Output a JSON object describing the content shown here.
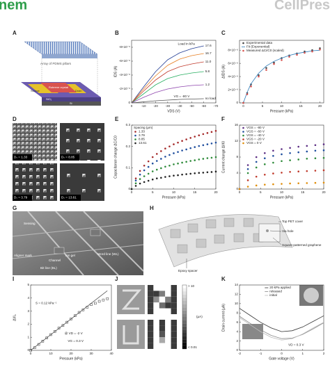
{
  "header": {
    "journal": "nem",
    "publisher": "CellPres"
  },
  "panels": {
    "A": {
      "label": "A",
      "texts": [
        "Array of PDMS pillars",
        "Rubrene crystal",
        "Source",
        "Drain",
        "SiO₂",
        "Si"
      ]
    },
    "B": {
      "label": "B",
      "chart": {
        "type": "line",
        "xlabel": "VDS (V)",
        "ylabel": "IDS (A)",
        "x": [
          0,
          -10,
          -20,
          -30,
          -40,
          -50,
          -60
        ],
        "xlim": [
          0,
          -70
        ],
        "ylim": [
          0,
          -9e-06
        ],
        "xticks": [
          0,
          -10,
          -20,
          -30,
          -40,
          -50,
          -60,
          -70
        ],
        "yticks": [
          0,
          {
            "value": -2e-06,
            "label": "-2×10⁻⁶"
          },
          {
            "value": -4e-06,
            "label": "-4×10⁻⁶"
          },
          {
            "value": -6e-06,
            "label": "-6×10⁻⁶"
          },
          {
            "value": -8e-06,
            "label": "-8×10⁻⁶"
          }
        ],
        "legend": "inline",
        "annotations": [
          "Load in kPa",
          "VG = -80 V"
        ],
        "series": [
          {
            "name": "17.6",
            "color": "#1f3a93",
            "values": [
              0,
              -2.3e-06,
              -4.5e-06,
              -6.2e-06,
              -7.2e-06,
              -7.8e-06,
              -8.2e-06
            ]
          },
          {
            "name": "16.7",
            "color": "#e67e22",
            "values": [
              0,
              -2e-06,
              -3.9e-06,
              -5.4e-06,
              -6.3e-06,
              -6.8e-06,
              -7.1e-06
            ]
          },
          {
            "name": "11.0",
            "color": "#c0392b",
            "values": [
              0,
              -1.7e-06,
              -3.3e-06,
              -4.5e-06,
              -5.2e-06,
              -5.6e-06,
              -5.9e-06
            ]
          },
          {
            "name": "5.8",
            "color": "#27ae60",
            "values": [
              0,
              -1.3e-06,
              -2.6e-06,
              -3.5e-06,
              -4e-06,
              -4.3e-06,
              -4.5e-06
            ]
          },
          {
            "name": "1.2",
            "color": "#8e44ad",
            "values": [
              0,
              -8e-07,
              -1.5e-06,
              -2e-06,
              -2.3e-06,
              -2.5e-06,
              -2.6e-06
            ]
          },
          {
            "name": "no load",
            "color": "#555555",
            "values": [
              0,
              -1.5e-07,
              -3e-07,
              -4e-07,
              -5e-07,
              -5.5e-07,
              -6e-07
            ]
          }
        ]
      }
    },
    "C": {
      "label": "C",
      "chart": {
        "type": "scatter",
        "xlabel": "Pressure (kPa)",
        "ylabel": "ΔIDS (A)",
        "x": [
          0,
          1,
          2,
          4,
          6,
          8,
          10,
          12,
          14,
          16,
          18,
          20
        ],
        "xlim": [
          -1,
          21
        ],
        "ylim": [
          0,
          9.5e-06
        ],
        "xticks": [
          0,
          5,
          10,
          15,
          20
        ],
        "yticks": [
          0,
          {
            "value": 2e-06,
            "label": "2×10⁻⁶"
          },
          {
            "value": 4e-06,
            "label": "4×10⁻⁶"
          },
          {
            "value": 6e-06,
            "label": "6×10⁻⁶"
          },
          {
            "value": 8e-06,
            "label": "8×10⁻⁶"
          }
        ],
        "legend": "upper left",
        "series": [
          {
            "name": "Experimental data",
            "color": "#444444",
            "values": [
              0,
              1.5e-06,
              2.8e-06,
              4.2e-06,
              5.3e-06,
              6.1e-06,
              6.8e-06,
              7.2e-06,
              7.5e-06,
              7.8e-06,
              8e-06,
              8.3e-06
            ]
          },
          {
            "name": "Fit (Exponential)",
            "color": "#2a7ab8",
            "mode": "lines",
            "values": [
              0,
              1.6e-06,
              2.9e-06,
              4.5e-06,
              5.6e-06,
              6.3e-06,
              6.8e-06,
              7.2e-06,
              7.5e-06,
              7.7e-06,
              7.9e-06,
              8e-06
            ]
          },
          {
            "name": "Measured ΔCi/C0 (scaled)",
            "color": "#d9534f",
            "values": [
              0,
              1.3e-06,
              2.5e-06,
              4e-06,
              5e-06,
              5.9e-06,
              6.5e-06,
              7e-06,
              7.3e-06,
              7.6e-06,
              7.8e-06,
              8.1e-06
            ]
          }
        ]
      }
    },
    "D": {
      "label": "D",
      "images": [
        "Dₛ = 1.33",
        "Dₛ = 8.85",
        "Dₛ = 3.79",
        "Dₛ = 13.61"
      ]
    },
    "E": {
      "label": "E",
      "chart": {
        "type": "scatter",
        "xlabel": "Pressure (kPa)",
        "ylabel": "Capacitance change ΔC/C0",
        "x": [
          0,
          1,
          2,
          3,
          4,
          5,
          6,
          7,
          8,
          9,
          10,
          11,
          12,
          13,
          14,
          15,
          16,
          17,
          18,
          19,
          20
        ],
        "xlim": [
          0,
          20
        ],
        "ylim": [
          0,
          0.3
        ],
        "xticks": [
          0,
          5,
          10,
          15,
          20
        ],
        "yticks": [
          0,
          0.1,
          0.2,
          0.3
        ],
        "legend": "upper left",
        "legend_title": "Spacing (μm)",
        "series": [
          {
            "name": "1.33",
            "color": "#a52a2a",
            "values": [
              0,
              0.05,
              0.085,
              0.11,
              0.13,
              0.15,
              0.165,
              0.178,
              0.19,
              0.2,
              0.21,
              0.218,
              0.226,
              0.233,
              0.24,
              0.246,
              0.252,
              0.258,
              0.263,
              0.268,
              0.273
            ]
          },
          {
            "name": "3.79",
            "color": "#1f4e9e",
            "values": [
              0,
              0.04,
              0.068,
              0.088,
              0.104,
              0.12,
              0.132,
              0.142,
              0.152,
              0.16,
              0.168,
              0.174,
              0.181,
              0.186,
              0.192,
              0.197,
              0.202,
              0.206,
              0.21,
              0.214,
              0.218
            ]
          },
          {
            "name": "8.85",
            "color": "#2e8b3a",
            "values": [
              0,
              0.027,
              0.047,
              0.06,
              0.072,
              0.083,
              0.091,
              0.098,
              0.105,
              0.11,
              0.116,
              0.12,
              0.124,
              0.128,
              0.132,
              0.135,
              0.139,
              0.142,
              0.145,
              0.147,
              0.15
            ]
          },
          {
            "name": "13.61",
            "color": "#222222",
            "values": [
              0,
              0.015,
              0.026,
              0.033,
              0.039,
              0.045,
              0.05,
              0.053,
              0.057,
              0.06,
              0.063,
              0.065,
              0.068,
              0.07,
              0.072,
              0.074,
              0.076,
              0.077,
              0.079,
              0.08,
              0.082
            ]
          }
        ]
      }
    },
    "F": {
      "label": "F",
      "chart": {
        "type": "scatter",
        "xlabel": "Pressure (kPa)",
        "ylabel": "Current change ΔI/I0",
        "x": [
          0,
          2,
          4,
          6,
          8,
          10,
          12,
          14,
          16,
          18,
          20
        ],
        "xlim": [
          0,
          20
        ],
        "ylim": [
          0,
          16
        ],
        "xticks": [
          0,
          5,
          10,
          15,
          20
        ],
        "yticks": [
          0,
          4,
          8,
          12,
          16
        ],
        "legend": "upper left",
        "series": [
          {
            "name": "VGS = -80 V",
            "color": "#5b2c83",
            "values": [
              0,
              6,
              8,
              9,
              9.6,
              10,
              10.3,
              10.6,
              10.8,
              11,
              11.2
            ]
          },
          {
            "name": "VGS = -60 V",
            "color": "#1f4e9e",
            "values": [
              0,
              5,
              6.8,
              7.7,
              8.3,
              8.7,
              9,
              9.2,
              9.4,
              9.6,
              9.7
            ]
          },
          {
            "name": "VGS = -40 V",
            "color": "#2e8b3a",
            "values": [
              0,
              4,
              5.4,
              6.2,
              6.6,
              7,
              7.2,
              7.4,
              7.6,
              7.7,
              7.8
            ]
          },
          {
            "name": "VGS = -20 V",
            "color": "#c0392b",
            "values": [
              0,
              2.2,
              3.1,
              3.6,
              3.9,
              4.1,
              4.3,
              4.4,
              4.5,
              4.6,
              4.7
            ]
          },
          {
            "name": "VGS = 0 V",
            "color": "#e08e0b",
            "values": [
              0,
              0.6,
              0.9,
              1.1,
              1.2,
              1.3,
              1.4,
              1.45,
              1.5,
              1.55,
              1.6
            ]
          }
        ]
      }
    },
    "G": {
      "label": "G",
      "texts": [
        "Sensing",
        "Aligner mark",
        "Bit line (BL)",
        "Channel",
        "Ion gel",
        "Word line (WL)"
      ]
    },
    "H": {
      "label": "H",
      "texts": [
        "Top PET cover",
        "Via hole",
        "Square-patterned graphene",
        "Epoxy spacer"
      ]
    },
    "I": {
      "label": "I",
      "chart": {
        "type": "scatter",
        "xlabel": "Pressure (kPa)",
        "ylabel": "ΔI/I₀",
        "x": [
          0,
          2,
          4,
          6,
          8,
          10,
          12,
          14,
          16,
          18,
          20,
          22,
          24,
          26,
          28,
          30,
          32,
          34,
          36,
          38
        ],
        "xlim": [
          0,
          40
        ],
        "ylim": [
          0,
          5
        ],
        "xticks": [
          0,
          10,
          20,
          30,
          40
        ],
        "yticks": [
          0,
          1,
          2,
          3,
          4,
          5
        ],
        "legend": "none",
        "annotations": [
          "S = 0.12 kPa⁻¹",
          "@ VD = -2 V",
          "VG = 0.3 V"
        ],
        "series": [
          {
            "color": "#333333",
            "marker": "square",
            "values": [
              0,
              0.2,
              0.45,
              0.7,
              0.95,
              1.2,
              1.45,
              1.7,
              1.9,
              2.15,
              2.4,
              2.65,
              2.9,
              3.1,
              3.3,
              3.5,
              3.6,
              3.75,
              3.85,
              3.95
            ]
          },
          {
            "color": "#555555",
            "mode": "lines",
            "values": [
              0,
              0.24,
              0.48,
              0.72,
              0.96,
              1.2,
              1.44,
              1.68,
              1.92,
              2.16,
              2.4,
              2.64,
              2.88,
              3.12,
              3.36,
              3.6,
              3.84,
              4.08,
              4.32,
              4.56
            ]
          }
        ]
      }
    },
    "J": {
      "label": "J",
      "heatmaps": [
        [
          [
            0.05,
            10,
            10,
            10,
            0.05
          ],
          [
            0.05,
            0.05,
            0.3,
            10,
            0.05
          ],
          [
            0.05,
            0.5,
            10,
            0.3,
            0.05
          ],
          [
            0.05,
            10,
            0.2,
            0.05,
            0.05
          ],
          [
            0.05,
            10,
            10,
            10,
            0.05
          ]
        ],
        [
          [
            0.05,
            10,
            0.05,
            10,
            0.05
          ],
          [
            0.05,
            10,
            0.05,
            10,
            0.05
          ],
          [
            0.05,
            10,
            0.1,
            10,
            0.05
          ],
          [
            0.05,
            10,
            1,
            10,
            0.05
          ],
          [
            0.05,
            10,
            10,
            10,
            0.05
          ]
        ]
      ],
      "colorbar": {
        "scale": "log",
        "range": [
          0.01,
          10
        ],
        "max_label": "> 10",
        "min_label": "< 0.01",
        "unit": "(μA)"
      }
    },
    "K": {
      "label": "K",
      "chart": {
        "type": "line",
        "xlabel": "Gate voltage (V)",
        "ylabel": "Drain current (μA)",
        "x": [
          -2,
          -1.5,
          -1,
          -0.5,
          0,
          0.5,
          1,
          1.5,
          2
        ],
        "xlim": [
          -2,
          2
        ],
        "ylim": [
          0,
          14
        ],
        "xticks": [
          -2,
          -1,
          0,
          1,
          2
        ],
        "yticks": [
          0,
          2,
          4,
          6,
          8,
          10,
          12,
          14
        ],
        "legend": "upper center",
        "annotations": [
          "VD = 0.3 V"
        ],
        "series": [
          {
            "name": "20 kPa applied",
            "color": "#333333",
            "values": [
              9,
              7.5,
              6,
              4.8,
              4,
              4.2,
              5,
              6.2,
              7.4
            ]
          },
          {
            "name": "released",
            "color": "#888888",
            "values": [
              7.3,
              5.8,
              4.4,
              3.2,
              2.5,
              2.6,
              3.4,
              4.6,
              5.9
            ]
          },
          {
            "name": "initial",
            "color": "#bbbbbb",
            "values": [
              7,
              5.5,
              4,
              2.8,
              2.2,
              2.5,
              3.5,
              4.8,
              6
            ]
          }
        ]
      }
    }
  }
}
